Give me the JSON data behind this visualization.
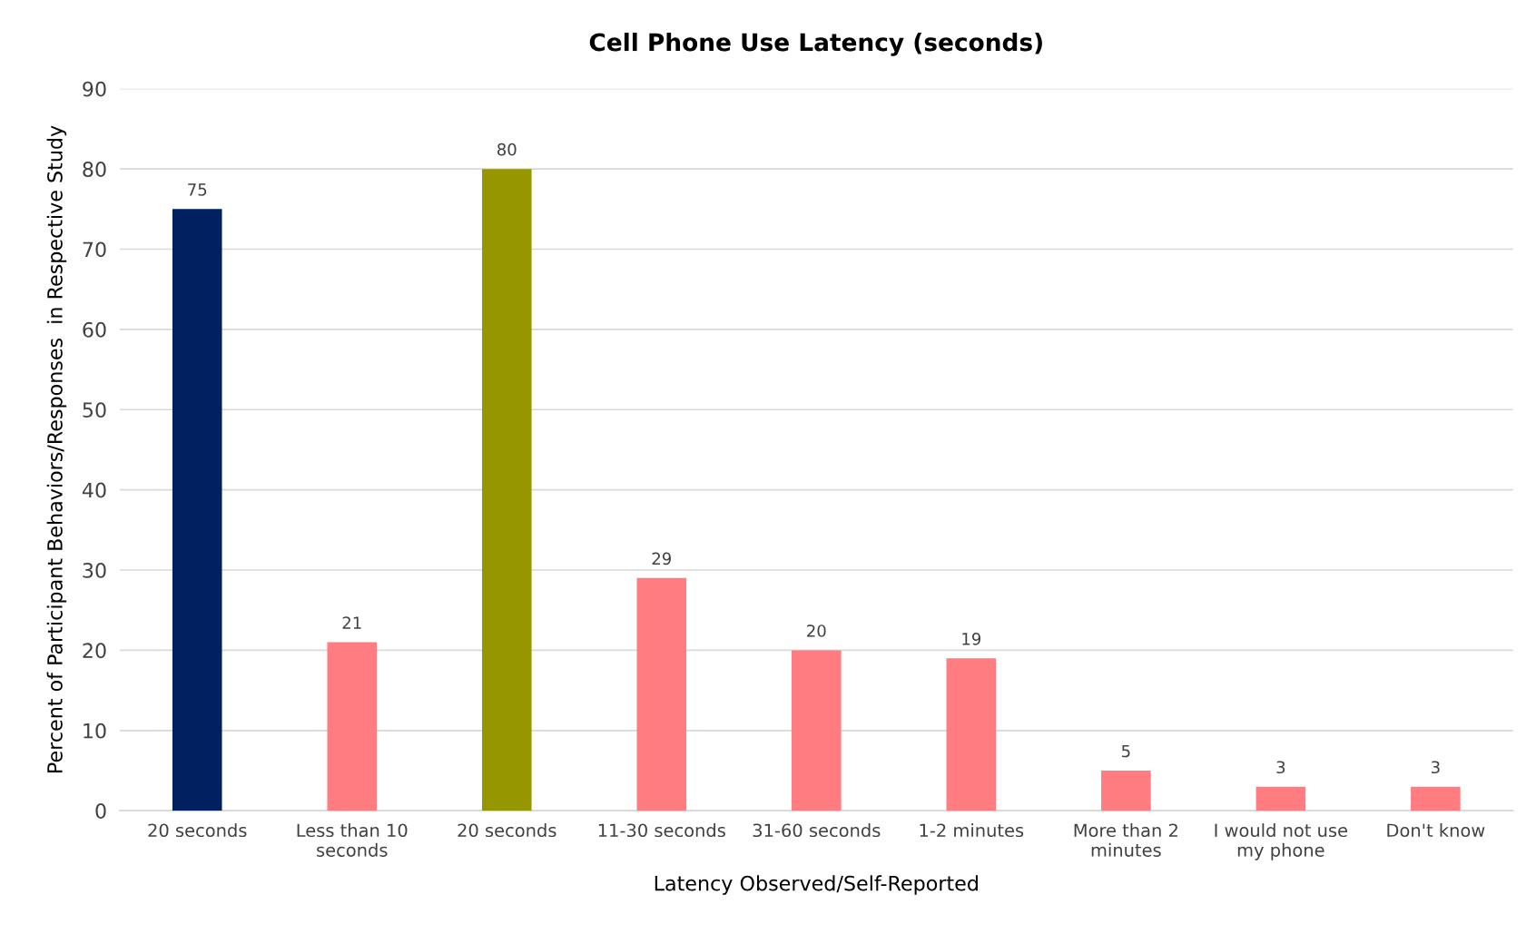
{
  "chart_data": {
    "type": "bar",
    "title": "Cell Phone Use Latency (seconds)",
    "xlabel": "Latency Observed/Self-Reported",
    "ylabel": "Percent of Participant Behaviors/Responses  in Respective Study",
    "categories": [
      "20 seconds",
      "Less than 10 seconds",
      "20 seconds",
      "11-30 seconds",
      "31-60 seconds",
      "1-2 minutes",
      "More than 2 minutes",
      "I would not use my phone",
      "Don't know"
    ],
    "values": [
      75,
      21,
      80,
      29,
      20,
      19,
      5,
      3,
      3
    ],
    "colors": [
      "#002060",
      "#ff7c80",
      "#969600",
      "#ff7c80",
      "#ff7c80",
      "#ff7c80",
      "#ff7c80",
      "#ff7c80",
      "#ff7c80"
    ],
    "ylim": [
      0,
      90
    ],
    "yticks": [
      0,
      10,
      20,
      30,
      40,
      50,
      60,
      70,
      80,
      90
    ],
    "grid": "y",
    "data_labels": true
  }
}
